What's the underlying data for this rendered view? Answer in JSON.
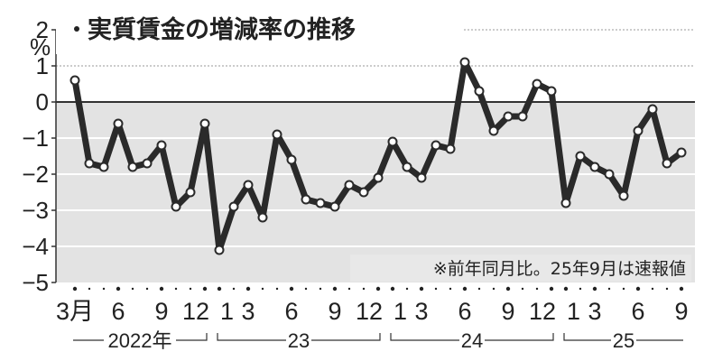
{
  "chart_data": {
    "type": "line",
    "title": "実質賃金の増減率の推移",
    "ylabel": "%",
    "note": "※前年同月比。25年9月は速報値",
    "ylim": [
      -5,
      2
    ],
    "yticks": [
      "2",
      "1",
      "0",
      "-1",
      "-2",
      "-3",
      "-4",
      "-5"
    ],
    "grid": true,
    "shaded_below_zero": true,
    "line_color": "#2a2a2a",
    "shade_color": "#e3e3e3",
    "x_tick_labels": [
      "3月",
      "6",
      "9",
      "12",
      "1",
      "3",
      "6",
      "9",
      "12",
      "1",
      "3",
      "6",
      "9",
      "12",
      "1",
      "3",
      "6",
      "9"
    ],
    "x_tick_months": [
      0,
      3,
      6,
      9,
      10,
      12,
      15,
      18,
      21,
      22,
      24,
      27,
      30,
      33,
      34,
      36,
      39,
      42
    ],
    "year_labels": [
      "2022年",
      "23",
      "24",
      "25"
    ],
    "x": [
      "2022-03",
      "2022-04",
      "2022-05",
      "2022-06",
      "2022-07",
      "2022-08",
      "2022-09",
      "2022-10",
      "2022-11",
      "2022-12",
      "2023-01",
      "2023-02",
      "2023-03",
      "2023-04",
      "2023-05",
      "2023-06",
      "2023-07",
      "2023-08",
      "2023-09",
      "2023-10",
      "2023-11",
      "2023-12",
      "2024-01",
      "2024-02",
      "2024-03",
      "2024-04",
      "2024-05",
      "2024-06",
      "2024-07",
      "2024-08",
      "2024-09",
      "2024-10",
      "2024-11",
      "2024-12",
      "2025-01",
      "2025-02",
      "2025-03",
      "2025-04",
      "2025-05",
      "2025-06",
      "2025-07",
      "2025-08",
      "2025-09"
    ],
    "values": [
      0.6,
      -1.7,
      -1.8,
      -0.6,
      -1.8,
      -1.7,
      -1.2,
      -2.9,
      -2.5,
      -0.6,
      -4.1,
      -2.9,
      -2.3,
      -3.2,
      -0.9,
      -1.6,
      -2.7,
      -2.8,
      -2.9,
      -2.3,
      -2.5,
      -2.1,
      -1.1,
      -1.8,
      -2.1,
      -1.2,
      -1.3,
      1.1,
      0.3,
      -0.8,
      -0.4,
      -0.4,
      0.5,
      0.3,
      -2.8,
      -1.5,
      -1.8,
      -2.0,
      -2.6,
      -0.8,
      -0.2,
      -1.7,
      -1.4
    ]
  }
}
